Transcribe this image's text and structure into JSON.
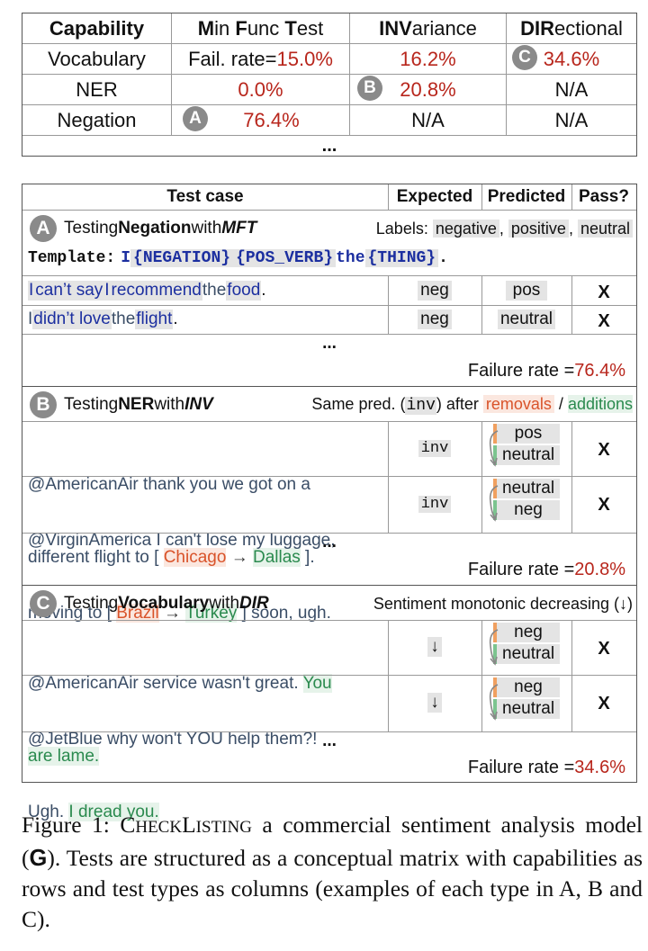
{
  "matrix": {
    "headers": [
      "Capability",
      "Min Func Test",
      "INVariance",
      "DIRectional"
    ],
    "header_bold": {
      "mft": [
        "M",
        "F",
        "T"
      ],
      "inv": "INV",
      "dir": "DIR"
    },
    "rows": [
      {
        "capability": "Vocabulary",
        "mft": "15.0%",
        "mft_prefix": "Fail. rate=",
        "inv": "16.2%",
        "dir": "34.6%"
      },
      {
        "capability": "NER",
        "mft": "0.0%",
        "inv": "20.8%",
        "dir": "N/A"
      },
      {
        "capability": "Negation",
        "mft": "76.4%",
        "inv": "N/A",
        "dir": "N/A"
      }
    ],
    "dots": "...",
    "markers": {
      "a": "A",
      "b": "B",
      "c": "C"
    }
  },
  "panel": {
    "headers": {
      "test_case": "Test case",
      "expected": "Expected",
      "predicted": "Predicted",
      "pass": "Pass?"
    },
    "sectionA": {
      "marker": "A",
      "title_pre": "Testing ",
      "title_cap": "Negation",
      "title_mid": " with ",
      "title_type": "MFT",
      "labels_pre": "Labels: ",
      "labels": [
        "negative",
        "positive",
        "neutral"
      ],
      "template_label": "Template:",
      "template_tokens": [
        "I",
        "{NEGATION}",
        "{POS_VERB}",
        "the",
        "{THING}",
        "."
      ],
      "examples": [
        {
          "tokens": [
            "I",
            "can’t say",
            "I",
            "recommend",
            "the",
            "food",
            "."
          ],
          "expected": "neg",
          "predicted": "pos",
          "pass": "X"
        },
        {
          "tokens": [
            "I",
            "didn’t love",
            "the",
            "flight",
            "."
          ],
          "expected": "neg",
          "predicted": "neutral",
          "pass": "X"
        }
      ],
      "dots": "...",
      "failure_label": "Failure rate = ",
      "failure_value": "76.4%"
    },
    "sectionB": {
      "marker": "B",
      "title_pre": "Testing ",
      "title_cap": "NER",
      "title_mid": " with ",
      "title_type": "INV",
      "desc_pre": "Same pred. (",
      "desc_code": "inv",
      "desc_post": ") after ",
      "removals": "removals",
      "slash": " / ",
      "additions": "additions",
      "examples": [
        {
          "line1": "@AmericanAir thank you we got on a",
          "line2_pre": "different flight to [ ",
          "removed": "Chicago",
          "arrow": "→",
          "added": "Dallas",
          "line2_post": " ].",
          "expected": "inv",
          "pred_before": "pos",
          "pred_after": "neutral",
          "pass": "X"
        },
        {
          "line1": "@VirginAmerica I can't lose my luggage,",
          "line2_pre": "moving to [ ",
          "removed": "Brazil",
          "arrow": "→",
          "added": "Turkey",
          "line2_post": " ] soon, ugh.",
          "expected": "inv",
          "pred_before": "neutral",
          "pred_after": "neg",
          "pass": "X"
        }
      ],
      "dots": "...",
      "failure_label": "Failure rate = ",
      "failure_value": "20.8%"
    },
    "sectionC": {
      "marker": "C",
      "title_pre": "Testing ",
      "title_cap": "Vocabulary",
      "title_mid": " with ",
      "title_type": "DIR",
      "desc": "Sentiment monotonic decreasing (↓)",
      "examples": [
        {
          "line1_pre": "@AmericanAir service wasn't great. ",
          "line1_add": "You",
          "line2_add": "are lame.",
          "line2_post": "",
          "expected": "↓",
          "pred_before": "neg",
          "pred_after": "neutral",
          "pass": "X"
        },
        {
          "line1_pre": "@JetBlue why won't YOU help them?!",
          "line1_add": "",
          "line2_pre": "Ugh. ",
          "line2_add": "I dread you.",
          "line2_post": "",
          "expected": "↓",
          "pred_before": "neg",
          "pred_after": "neutral",
          "pass": "X"
        }
      ],
      "dots": "...",
      "failure_label": "Failure rate = ",
      "failure_value": "34.6%"
    }
  },
  "caption": {
    "label": "Figure 1: ",
    "checklist_c": "C",
    "checklist_rest": "HECK",
    "checklist_l": "L",
    "checklist_end": "ISTING",
    "text1": " a commercial sentiment analysis model (",
    "g": "G",
    "text2": "). Tests are structured as a conceptual matrix with capabilities as rows and test types as columns (examples of each type in A, B and C)."
  }
}
